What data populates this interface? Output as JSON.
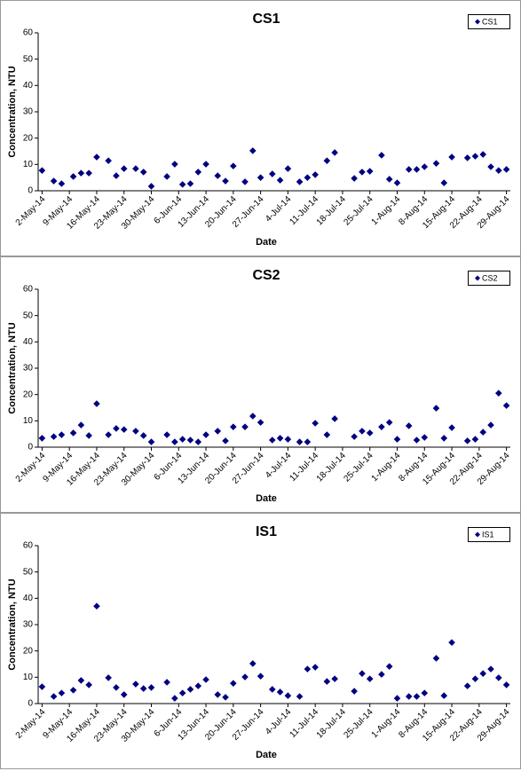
{
  "chart_data": [
    {
      "type": "scatter",
      "title": "CS1",
      "x_label": "Date",
      "y_label": "Concentration, NTU",
      "x": [
        "2014-05-02",
        "2014-05-05",
        "2014-05-07",
        "2014-05-10",
        "2014-05-12",
        "2014-05-14",
        "2014-05-16",
        "2014-05-19",
        "2014-05-21",
        "2014-05-23",
        "2014-05-26",
        "2014-05-28",
        "2014-05-30",
        "2014-06-03",
        "2014-06-05",
        "2014-06-07",
        "2014-06-09",
        "2014-06-11",
        "2014-06-13",
        "2014-06-16",
        "2014-06-18",
        "2014-06-20",
        "2014-06-23",
        "2014-06-25",
        "2014-06-27",
        "2014-06-30",
        "2014-07-02",
        "2014-07-04",
        "2014-07-07",
        "2014-07-09",
        "2014-07-11",
        "2014-07-14",
        "2014-07-16",
        "2014-07-21",
        "2014-07-23",
        "2014-07-25",
        "2014-07-28",
        "2014-07-30",
        "2014-08-01",
        "2014-08-04",
        "2014-08-06",
        "2014-08-08",
        "2014-08-11",
        "2014-08-13",
        "2014-08-15",
        "2014-08-19",
        "2014-08-21",
        "2014-08-23",
        "2014-08-25",
        "2014-08-27",
        "2014-08-29"
      ],
      "series": [
        {
          "name": "CS1",
          "color": "#000080",
          "values": [
            7.7,
            3.7,
            2.7,
            5.4,
            6.7,
            6.7,
            12.8,
            11.4,
            5.7,
            8.4,
            8.4,
            7.1,
            1.7,
            5.4,
            10.1,
            2.4,
            2.7,
            7.1,
            10.1,
            5.7,
            3.7,
            9.4,
            3.4,
            15.2,
            5.0,
            6.4,
            4.0,
            8.4,
            3.4,
            5.0,
            6.1,
            11.4,
            14.5,
            4.7,
            7.1,
            7.4,
            13.5,
            4.4,
            3.0,
            8.1,
            8.1,
            9.1,
            10.4,
            3.0,
            12.8,
            12.5,
            13.1,
            13.8,
            9.1,
            7.7,
            8.1
          ]
        }
      ],
      "xlim": [
        "2014-05-01",
        "2014-08-30"
      ],
      "xticks": [
        {
          "value": "2014-05-02",
          "label": "2-May-14"
        },
        {
          "value": "2014-05-09",
          "label": "9-May-14"
        },
        {
          "value": "2014-05-16",
          "label": "16-May-14"
        },
        {
          "value": "2014-05-23",
          "label": "23-May-14"
        },
        {
          "value": "2014-05-30",
          "label": "30-May-14"
        },
        {
          "value": "2014-06-06",
          "label": "6-Jun-14"
        },
        {
          "value": "2014-06-13",
          "label": "13-Jun-14"
        },
        {
          "value": "2014-06-20",
          "label": "20-Jun-14"
        },
        {
          "value": "2014-06-27",
          "label": "27-Jun-14"
        },
        {
          "value": "2014-07-04",
          "label": "4-Jul-14"
        },
        {
          "value": "2014-07-11",
          "label": "11-Jul-14"
        },
        {
          "value": "2014-07-18",
          "label": "18-Jul-14"
        },
        {
          "value": "2014-07-25",
          "label": "25-Jul-14"
        },
        {
          "value": "2014-08-01",
          "label": "1-Aug-14"
        },
        {
          "value": "2014-08-08",
          "label": "8-Aug-14"
        },
        {
          "value": "2014-08-15",
          "label": "15-Aug-14"
        },
        {
          "value": "2014-08-22",
          "label": "22-Aug-14"
        },
        {
          "value": "2014-08-29",
          "label": "29-Aug-14"
        }
      ],
      "ylim": [
        0,
        60
      ],
      "yticks": [
        0,
        10,
        20,
        30,
        40,
        50,
        60
      ],
      "grid": false,
      "legend": "top-right"
    },
    {
      "type": "scatter",
      "title": "CS2",
      "x_label": "Date",
      "y_label": "Concentration, NTU",
      "x": [
        "2014-05-02",
        "2014-05-05",
        "2014-05-07",
        "2014-05-10",
        "2014-05-12",
        "2014-05-14",
        "2014-05-16",
        "2014-05-19",
        "2014-05-21",
        "2014-05-23",
        "2014-05-26",
        "2014-05-28",
        "2014-05-30",
        "2014-06-03",
        "2014-06-05",
        "2014-06-07",
        "2014-06-09",
        "2014-06-11",
        "2014-06-13",
        "2014-06-16",
        "2014-06-18",
        "2014-06-20",
        "2014-06-23",
        "2014-06-25",
        "2014-06-27",
        "2014-06-30",
        "2014-07-02",
        "2014-07-04",
        "2014-07-07",
        "2014-07-09",
        "2014-07-11",
        "2014-07-14",
        "2014-07-16",
        "2014-07-21",
        "2014-07-23",
        "2014-07-25",
        "2014-07-28",
        "2014-07-30",
        "2014-08-01",
        "2014-08-04",
        "2014-08-06",
        "2014-08-08",
        "2014-08-11",
        "2014-08-13",
        "2014-08-15",
        "2014-08-19",
        "2014-08-21",
        "2014-08-23",
        "2014-08-25",
        "2014-08-27",
        "2014-08-29"
      ],
      "series": [
        {
          "name": "CS2",
          "color": "#000080",
          "values": [
            3.4,
            4.0,
            4.7,
            5.4,
            8.4,
            4.4,
            16.5,
            4.7,
            7.1,
            6.7,
            6.1,
            4.4,
            2.0,
            4.7,
            2.0,
            3.0,
            2.7,
            2.0,
            4.7,
            6.1,
            2.4,
            7.7,
            7.7,
            11.8,
            9.4,
            2.7,
            3.4,
            3.0,
            2.0,
            2.0,
            9.1,
            4.7,
            10.8,
            4.0,
            6.1,
            5.4,
            7.7,
            9.4,
            3.0,
            8.1,
            2.7,
            3.7,
            14.8,
            3.4,
            7.4,
            2.4,
            3.0,
            5.7,
            8.4,
            20.5,
            15.8
          ]
        }
      ],
      "xlim": [
        "2014-05-01",
        "2014-08-30"
      ],
      "xticks": [
        {
          "value": "2014-05-02",
          "label": "2-May-14"
        },
        {
          "value": "2014-05-09",
          "label": "9-May-14"
        },
        {
          "value": "2014-05-16",
          "label": "16-May-14"
        },
        {
          "value": "2014-05-23",
          "label": "23-May-14"
        },
        {
          "value": "2014-05-30",
          "label": "30-May-14"
        },
        {
          "value": "2014-06-06",
          "label": "6-Jun-14"
        },
        {
          "value": "2014-06-13",
          "label": "13-Jun-14"
        },
        {
          "value": "2014-06-20",
          "label": "20-Jun-14"
        },
        {
          "value": "2014-06-27",
          "label": "27-Jun-14"
        },
        {
          "value": "2014-07-04",
          "label": "4-Jul-14"
        },
        {
          "value": "2014-07-11",
          "label": "11-Jul-14"
        },
        {
          "value": "2014-07-18",
          "label": "18-Jul-14"
        },
        {
          "value": "2014-07-25",
          "label": "25-Jul-14"
        },
        {
          "value": "2014-08-01",
          "label": "1-Aug-14"
        },
        {
          "value": "2014-08-08",
          "label": "8-Aug-14"
        },
        {
          "value": "2014-08-15",
          "label": "15-Aug-14"
        },
        {
          "value": "2014-08-22",
          "label": "22-Aug-14"
        },
        {
          "value": "2014-08-29",
          "label": "29-Aug-14"
        }
      ],
      "ylim": [
        0,
        60
      ],
      "yticks": [
        0,
        10,
        20,
        30,
        40,
        50,
        60
      ],
      "grid": false,
      "legend": "top-right"
    },
    {
      "type": "scatter",
      "title": "IS1",
      "x_label": "Date",
      "y_label": "Concentration, NTU",
      "x": [
        "2014-05-02",
        "2014-05-05",
        "2014-05-07",
        "2014-05-10",
        "2014-05-12",
        "2014-05-14",
        "2014-05-16",
        "2014-05-19",
        "2014-05-21",
        "2014-05-23",
        "2014-05-26",
        "2014-05-28",
        "2014-05-30",
        "2014-06-03",
        "2014-06-05",
        "2014-06-07",
        "2014-06-09",
        "2014-06-11",
        "2014-06-13",
        "2014-06-16",
        "2014-06-18",
        "2014-06-20",
        "2014-06-23",
        "2014-06-25",
        "2014-06-27",
        "2014-06-30",
        "2014-07-02",
        "2014-07-04",
        "2014-07-07",
        "2014-07-09",
        "2014-07-11",
        "2014-07-14",
        "2014-07-16",
        "2014-07-21",
        "2014-07-23",
        "2014-07-25",
        "2014-07-28",
        "2014-07-30",
        "2014-08-01",
        "2014-08-04",
        "2014-08-06",
        "2014-08-08",
        "2014-08-11",
        "2014-08-13",
        "2014-08-15",
        "2014-08-19",
        "2014-08-21",
        "2014-08-23",
        "2014-08-25",
        "2014-08-27",
        "2014-08-29"
      ],
      "series": [
        {
          "name": "IS1",
          "color": "#000080",
          "values": [
            6.4,
            2.7,
            4.0,
            5.1,
            8.8,
            7.1,
            37.0,
            9.8,
            6.1,
            3.4,
            7.4,
            5.7,
            6.1,
            8.1,
            2.0,
            4.0,
            5.4,
            6.7,
            9.1,
            3.4,
            2.4,
            7.7,
            10.1,
            15.2,
            10.4,
            5.4,
            4.4,
            3.0,
            2.7,
            13.1,
            13.8,
            8.4,
            9.4,
            4.7,
            11.4,
            9.4,
            11.1,
            14.1,
            2.0,
            2.7,
            2.7,
            4.0,
            17.2,
            3.0,
            23.2,
            6.7,
            9.4,
            11.4,
            13.1,
            9.8,
            7.1
          ]
        }
      ],
      "xlim": [
        "2014-05-01",
        "2014-08-30"
      ],
      "xticks": [
        {
          "value": "2014-05-02",
          "label": "2-May-14"
        },
        {
          "value": "2014-05-09",
          "label": "9-May-14"
        },
        {
          "value": "2014-05-16",
          "label": "16-May-14"
        },
        {
          "value": "2014-05-23",
          "label": "23-May-14"
        },
        {
          "value": "2014-05-30",
          "label": "30-May-14"
        },
        {
          "value": "2014-06-06",
          "label": "6-Jun-14"
        },
        {
          "value": "2014-06-13",
          "label": "13-Jun-14"
        },
        {
          "value": "2014-06-20",
          "label": "20-Jun-14"
        },
        {
          "value": "2014-06-27",
          "label": "27-Jun-14"
        },
        {
          "value": "2014-07-04",
          "label": "4-Jul-14"
        },
        {
          "value": "2014-07-11",
          "label": "11-Jul-14"
        },
        {
          "value": "2014-07-18",
          "label": "18-Jul-14"
        },
        {
          "value": "2014-07-25",
          "label": "25-Jul-14"
        },
        {
          "value": "2014-08-01",
          "label": "1-Aug-14"
        },
        {
          "value": "2014-08-08",
          "label": "8-Aug-14"
        },
        {
          "value": "2014-08-15",
          "label": "15-Aug-14"
        },
        {
          "value": "2014-08-22",
          "label": "22-Aug-14"
        },
        {
          "value": "2014-08-29",
          "label": "29-Aug-14"
        }
      ],
      "ylim": [
        0,
        60
      ],
      "yticks": [
        0,
        10,
        20,
        30,
        40,
        50,
        60
      ],
      "grid": false,
      "legend": "top-right"
    }
  ]
}
